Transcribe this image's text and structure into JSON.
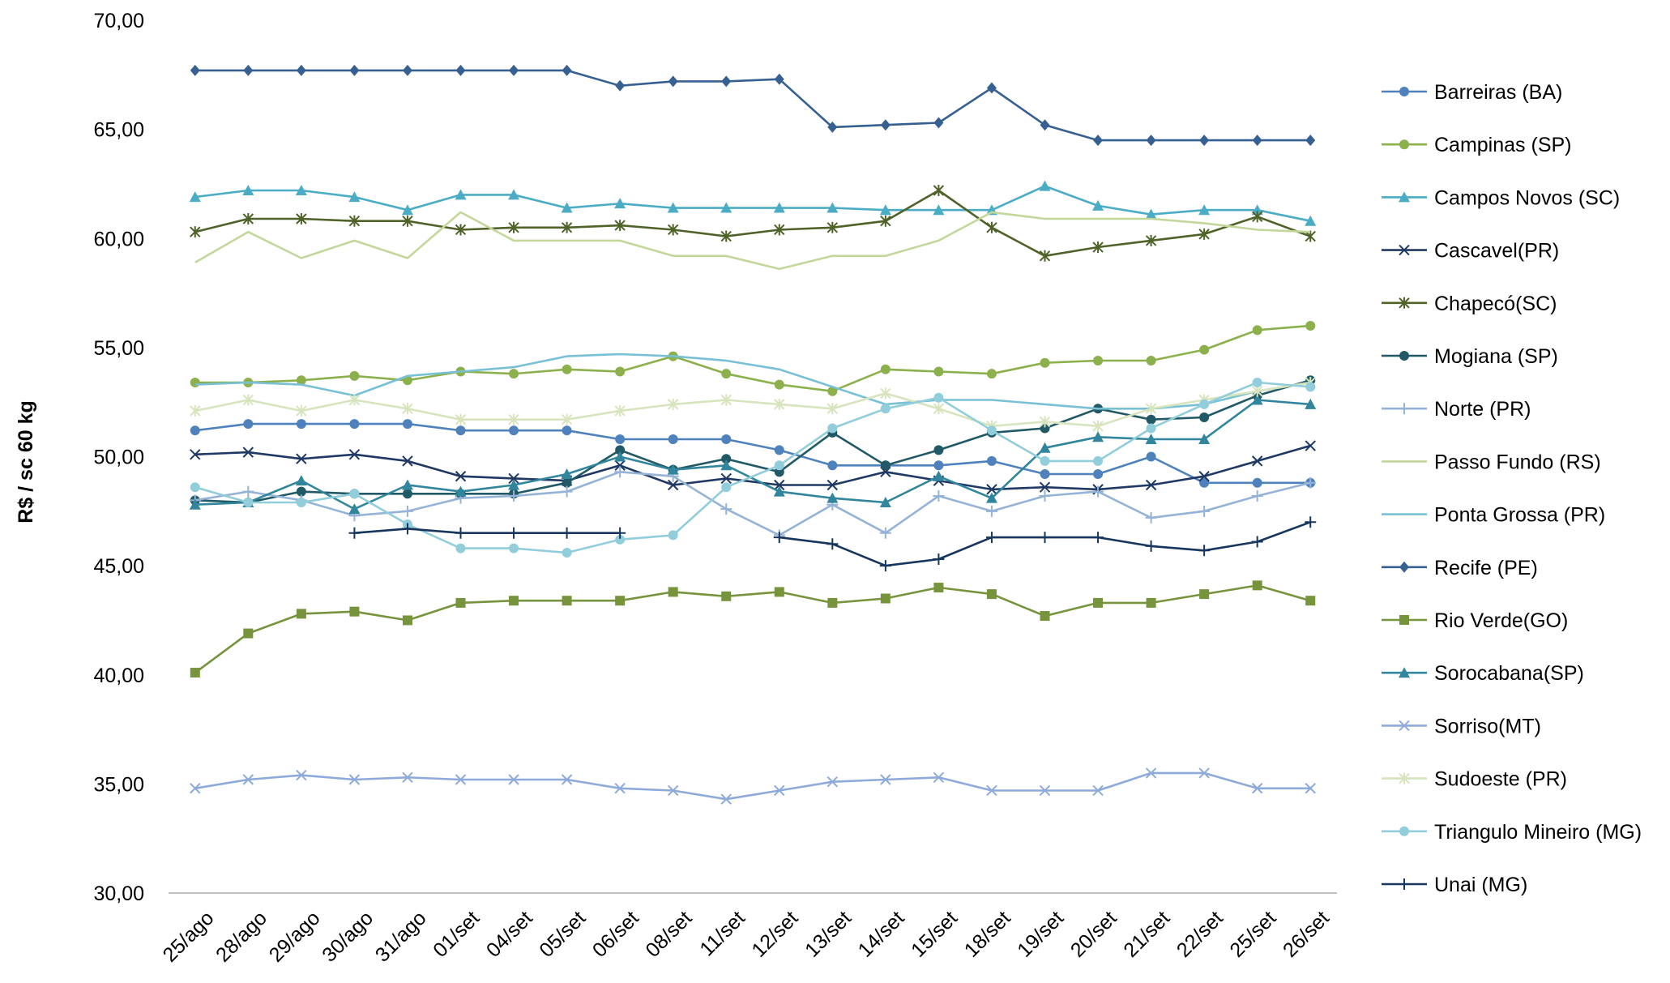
{
  "chart_data": {
    "type": "line",
    "title": "",
    "xlabel": "",
    "ylabel": "R$ / sc 60 kg",
    "ylim": [
      30,
      70
    ],
    "ytick_step": 5,
    "ytick_labels": [
      "30,00",
      "35,00",
      "40,00",
      "45,00",
      "50,00",
      "55,00",
      "60,00",
      "65,00",
      "70,00"
    ],
    "grid": false,
    "legend_position": "right",
    "categories": [
      "25/ago",
      "28/ago",
      "29/ago",
      "30/ago",
      "31/ago",
      "01/set",
      "04/set",
      "05/set",
      "06/set",
      "08/set",
      "11/set",
      "12/set",
      "13/set",
      "14/set",
      "15/set",
      "18/set",
      "19/set",
      "20/set",
      "21/set",
      "22/set",
      "25/set",
      "26/set"
    ],
    "series": [
      {
        "name": "Barreiras (BA)",
        "color": "#4f81bd",
        "marker": "circle",
        "values": [
          51.2,
          51.5,
          51.5,
          51.5,
          51.5,
          51.2,
          51.2,
          51.2,
          50.8,
          50.8,
          50.8,
          50.3,
          49.6,
          49.6,
          49.6,
          49.8,
          49.2,
          49.2,
          50.0,
          48.8,
          48.8,
          48.8
        ]
      },
      {
        "name": "Campinas (SP)",
        "color": "#8cb04c",
        "marker": "circle",
        "values": [
          53.4,
          53.4,
          53.5,
          53.7,
          53.5,
          53.9,
          53.8,
          54.0,
          53.9,
          54.6,
          53.8,
          53.3,
          53.0,
          54.0,
          53.9,
          53.8,
          54.3,
          54.4,
          54.4,
          54.9,
          55.8,
          56.0
        ]
      },
      {
        "name": "Campos Novos (SC)",
        "color": "#4bacc6",
        "marker": "triangle",
        "values": [
          61.9,
          62.2,
          62.2,
          61.9,
          61.3,
          62.0,
          62.0,
          61.4,
          61.6,
          61.4,
          61.4,
          61.4,
          61.4,
          61.3,
          61.3,
          61.3,
          62.4,
          61.5,
          61.1,
          61.3,
          61.3,
          60.8
        ]
      },
      {
        "name": "Cascavel(PR)",
        "color": "#1f3864",
        "marker": "x",
        "values": [
          50.1,
          50.2,
          49.9,
          50.1,
          49.8,
          49.1,
          49.0,
          48.9,
          49.6,
          48.7,
          49.0,
          48.7,
          48.7,
          49.3,
          48.9,
          48.5,
          48.6,
          48.5,
          48.7,
          49.1,
          49.8,
          50.5
        ]
      },
      {
        "name": "Chapecó(SC)",
        "color": "#4f6228",
        "marker": "star",
        "values": [
          60.3,
          60.9,
          60.9,
          60.8,
          60.8,
          60.4,
          60.5,
          60.5,
          60.6,
          60.4,
          60.1,
          60.4,
          60.5,
          60.8,
          62.2,
          60.5,
          59.2,
          59.6,
          59.9,
          60.2,
          61.0,
          60.1
        ]
      },
      {
        "name": "Mogiana (SP)",
        "color": "#215967",
        "marker": "circle",
        "values": [
          48.0,
          47.9,
          48.4,
          48.3,
          48.3,
          48.3,
          48.3,
          48.8,
          50.3,
          49.4,
          49.9,
          49.3,
          51.1,
          49.6,
          50.3,
          51.1,
          51.3,
          52.2,
          51.7,
          51.8,
          52.8,
          53.5
        ]
      },
      {
        "name": "Norte (PR)",
        "color": "#95b3d7",
        "marker": "plus",
        "values": [
          48.0,
          48.4,
          48.0,
          47.3,
          47.5,
          48.1,
          48.2,
          48.4,
          49.3,
          49.1,
          47.6,
          46.4,
          47.8,
          46.5,
          48.2,
          47.5,
          48.2,
          48.4,
          47.2,
          47.5,
          48.2,
          48.8
        ]
      },
      {
        "name": "Passo Fundo (RS)",
        "color": "#c4d79b",
        "marker": "none",
        "values": [
          58.9,
          60.3,
          59.1,
          59.9,
          59.1,
          61.2,
          59.9,
          59.9,
          59.9,
          59.2,
          59.2,
          58.6,
          59.2,
          59.2,
          59.9,
          61.2,
          60.9,
          60.9,
          60.9,
          60.7,
          60.4,
          60.3
        ]
      },
      {
        "name": "Ponta Grossa (PR)",
        "color": "#78c0d6",
        "marker": "none",
        "values": [
          53.3,
          53.4,
          53.3,
          52.8,
          53.7,
          53.9,
          54.1,
          54.6,
          54.7,
          54.6,
          54.4,
          54.0,
          53.2,
          52.4,
          52.6,
          52.6,
          52.4,
          52.2,
          52.2,
          52.4,
          53.0,
          53.4
        ]
      },
      {
        "name": "Recife (PE)",
        "color": "#376092",
        "marker": "diamond",
        "values": [
          67.7,
          67.7,
          67.7,
          67.7,
          67.7,
          67.7,
          67.7,
          67.7,
          67.0,
          67.2,
          67.2,
          67.3,
          65.1,
          65.2,
          65.3,
          66.9,
          65.2,
          64.5,
          64.5,
          64.5,
          64.5,
          64.5
        ]
      },
      {
        "name": "Rio Verde(GO)",
        "color": "#77933c",
        "marker": "square",
        "values": [
          40.1,
          41.9,
          42.8,
          42.9,
          42.5,
          43.3,
          43.4,
          43.4,
          43.4,
          43.8,
          43.6,
          43.8,
          43.3,
          43.5,
          44.0,
          43.7,
          42.7,
          43.3,
          43.3,
          43.7,
          44.1,
          43.4
        ]
      },
      {
        "name": "Sorocabana(SP)",
        "color": "#31859c",
        "marker": "triangle",
        "values": [
          47.8,
          47.9,
          48.9,
          47.6,
          48.7,
          48.4,
          48.7,
          49.2,
          50.0,
          49.4,
          49.6,
          48.4,
          48.1,
          47.9,
          49.1,
          48.1,
          50.4,
          50.9,
          50.8,
          50.8,
          52.6,
          52.4
        ]
      },
      {
        "name": "Sorriso(MT)",
        "color": "#8eaadb",
        "marker": "x",
        "values": [
          34.8,
          35.2,
          35.4,
          35.2,
          35.3,
          35.2,
          35.2,
          35.2,
          34.8,
          34.7,
          34.3,
          34.7,
          35.1,
          35.2,
          35.3,
          34.7,
          34.7,
          34.7,
          35.5,
          35.5,
          34.8,
          34.8
        ]
      },
      {
        "name": "Sudoeste (PR)",
        "color": "#d7e4bd",
        "marker": "star",
        "values": [
          52.1,
          52.6,
          52.1,
          52.6,
          52.2,
          51.7,
          51.7,
          51.7,
          52.1,
          52.4,
          52.6,
          52.4,
          52.2,
          52.9,
          52.2,
          51.4,
          51.6,
          51.4,
          52.2,
          52.6,
          53.0,
          53.4
        ]
      },
      {
        "name": "Triangulo Mineiro (MG)",
        "color": "#92cddc",
        "marker": "circle",
        "values": [
          48.6,
          47.9,
          47.9,
          48.3,
          46.9,
          45.8,
          45.8,
          45.6,
          46.2,
          46.4,
          48.6,
          49.6,
          51.3,
          52.2,
          52.7,
          51.2,
          49.8,
          49.8,
          51.3,
          52.4,
          53.4,
          53.2
        ]
      },
      {
        "name": "Unai (MG)",
        "color": "#17365d",
        "marker": "plus",
        "values": [
          null,
          null,
          null,
          46.5,
          46.7,
          46.5,
          46.5,
          46.5,
          46.5,
          null,
          null,
          46.3,
          46.0,
          45.0,
          45.3,
          46.3,
          46.3,
          46.3,
          45.9,
          45.7,
          46.1,
          47.0
        ]
      }
    ]
  }
}
